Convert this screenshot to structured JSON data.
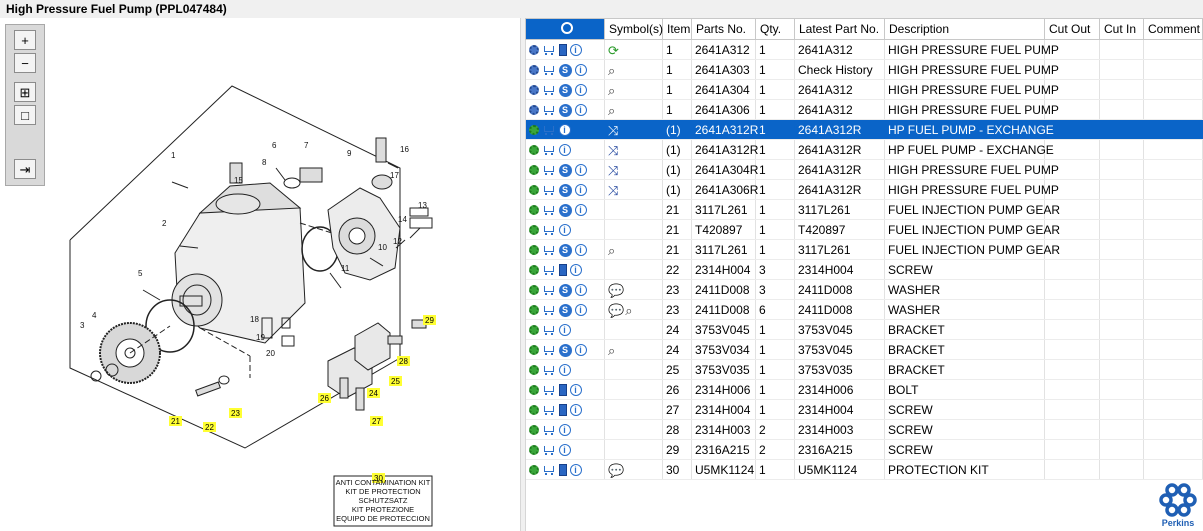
{
  "window": {
    "title": "High Pressure Fuel Pump (PPL047484)"
  },
  "toolbar": {
    "buttons": [
      {
        "name": "zoom-in-icon",
        "glyph": "+"
      },
      {
        "name": "zoom-out-icon",
        "glyph": "−"
      },
      {
        "name": "fit-all-icon",
        "glyph": "⊞"
      },
      {
        "name": "actual-size-icon",
        "glyph": "□"
      },
      {
        "name": "export-icon",
        "glyph": "⇥"
      }
    ]
  },
  "diagram": {
    "callouts": [
      "1",
      "2",
      "3",
      "4",
      "5",
      "6",
      "7",
      "8",
      "9",
      "10",
      "11",
      "12",
      "13",
      "14",
      "15",
      "16",
      "17",
      "18",
      "19",
      "20"
    ],
    "highlighted_callouts": [
      "21",
      "22",
      "23",
      "24",
      "25",
      "26",
      "27",
      "28",
      "29",
      "30"
    ],
    "kit_labels": [
      "ANTI CONTAMINATION KIT",
      "KIT DE PROTECTION",
      "SCHUTZSATZ",
      "KIT PROTEZIONE",
      "EQUIPO DE PROTECCION"
    ]
  },
  "table": {
    "columns": [
      "",
      "Symbol(s)",
      "Item",
      "Parts No.",
      "Qty.",
      "Latest Part No.",
      "Description",
      "Cut Out",
      "Cut In",
      "Comment"
    ],
    "rows": [
      {
        "icons": [
          "gear-blue",
          "cart",
          "book",
          "info"
        ],
        "symbols": [
          "refresh"
        ],
        "item": "1",
        "part": "2641A312",
        "qty": "1",
        "latest": "2641A312",
        "desc": "HIGH PRESSURE FUEL PUMP",
        "sel": false
      },
      {
        "icons": [
          "gear-blue",
          "cart",
          "s",
          "info"
        ],
        "symbols": [
          "magnifier"
        ],
        "item": "1",
        "part": "2641A303",
        "qty": "1",
        "latest": "Check History",
        "desc": "HIGH PRESSURE FUEL PUMP",
        "sel": false
      },
      {
        "icons": [
          "gear-blue",
          "cart",
          "s",
          "info"
        ],
        "symbols": [
          "magnifier"
        ],
        "item": "1",
        "part": "2641A304",
        "qty": "1",
        "latest": "2641A312",
        "desc": "HIGH PRESSURE FUEL PUMP",
        "sel": false
      },
      {
        "icons": [
          "gear-blue",
          "cart",
          "s",
          "info"
        ],
        "symbols": [
          "magnifier"
        ],
        "item": "1",
        "part": "2641A306",
        "qty": "1",
        "latest": "2641A312",
        "desc": "HIGH PRESSURE FUEL PUMP",
        "sel": false
      },
      {
        "icons": [
          "gear",
          "cart",
          "info"
        ],
        "symbols": [
          "exchange"
        ],
        "item": "(1)",
        "part": "2641A312R",
        "qty": "1",
        "latest": "2641A312R",
        "desc": "HP FUEL PUMP - EXCHANGE",
        "sel": true
      },
      {
        "icons": [
          "gear",
          "cart",
          "info"
        ],
        "symbols": [
          "exchange"
        ],
        "item": "(1)",
        "part": "2641A312R",
        "qty": "1",
        "latest": "2641A312R",
        "desc": "HP FUEL PUMP - EXCHANGE",
        "sel": false
      },
      {
        "icons": [
          "gear",
          "cart",
          "s",
          "info"
        ],
        "symbols": [
          "exchange"
        ],
        "item": "(1)",
        "part": "2641A304R",
        "qty": "1",
        "latest": "2641A312R",
        "desc": "HIGH PRESSURE FUEL PUMP",
        "sel": false
      },
      {
        "icons": [
          "gear",
          "cart",
          "s",
          "info"
        ],
        "symbols": [
          "exchange"
        ],
        "item": "(1)",
        "part": "2641A306R",
        "qty": "1",
        "latest": "2641A312R",
        "desc": "HIGH PRESSURE FUEL PUMP",
        "sel": false
      },
      {
        "icons": [
          "gear",
          "cart",
          "s",
          "info"
        ],
        "symbols": [],
        "item": "21",
        "part": "3117L261",
        "qty": "1",
        "latest": "3117L261",
        "desc": "FUEL INJECTION PUMP GEAR",
        "sel": false
      },
      {
        "icons": [
          "gear",
          "cart",
          "info"
        ],
        "symbols": [],
        "item": "21",
        "part": "T420897",
        "qty": "1",
        "latest": "T420897",
        "desc": "FUEL INJECTION PUMP GEAR",
        "sel": false
      },
      {
        "icons": [
          "gear",
          "cart",
          "s",
          "info"
        ],
        "symbols": [
          "magnifier"
        ],
        "item": "21",
        "part": "3117L261",
        "qty": "1",
        "latest": "3117L261",
        "desc": "FUEL INJECTION PUMP GEAR",
        "sel": false
      },
      {
        "icons": [
          "gear",
          "cart",
          "book",
          "info"
        ],
        "symbols": [],
        "item": "22",
        "part": "2314H004",
        "qty": "3",
        "latest": "2314H004",
        "desc": "SCREW",
        "sel": false
      },
      {
        "icons": [
          "gear",
          "cart",
          "s",
          "info"
        ],
        "symbols": [
          "comment"
        ],
        "item": "23",
        "part": "2411D008",
        "qty": "3",
        "latest": "2411D008",
        "desc": "WASHER",
        "sel": false
      },
      {
        "icons": [
          "gear",
          "cart",
          "s",
          "info"
        ],
        "symbols": [
          "comment",
          "magnifier"
        ],
        "item": "23",
        "part": "2411D008",
        "qty": "6",
        "latest": "2411D008",
        "desc": "WASHER",
        "sel": false
      },
      {
        "icons": [
          "gear",
          "cart",
          "info"
        ],
        "symbols": [],
        "item": "24",
        "part": "3753V045",
        "qty": "1",
        "latest": "3753V045",
        "desc": "BRACKET",
        "sel": false
      },
      {
        "icons": [
          "gear",
          "cart",
          "s",
          "info"
        ],
        "symbols": [
          "magnifier"
        ],
        "item": "24",
        "part": "3753V034",
        "qty": "1",
        "latest": "3753V045",
        "desc": "BRACKET",
        "sel": false
      },
      {
        "icons": [
          "gear",
          "cart",
          "info"
        ],
        "symbols": [],
        "item": "25",
        "part": "3753V035",
        "qty": "1",
        "latest": "3753V035",
        "desc": "BRACKET",
        "sel": false
      },
      {
        "icons": [
          "gear",
          "cart",
          "book",
          "info"
        ],
        "symbols": [],
        "item": "26",
        "part": "2314H006",
        "qty": "1",
        "latest": "2314H006",
        "desc": "BOLT",
        "sel": false
      },
      {
        "icons": [
          "gear",
          "cart",
          "book",
          "info"
        ],
        "symbols": [],
        "item": "27",
        "part": "2314H004",
        "qty": "1",
        "latest": "2314H004",
        "desc": "SCREW",
        "sel": false
      },
      {
        "icons": [
          "gear",
          "cart",
          "info"
        ],
        "symbols": [],
        "item": "28",
        "part": "2314H003",
        "qty": "2",
        "latest": "2314H003",
        "desc": "SCREW",
        "sel": false
      },
      {
        "icons": [
          "gear",
          "cart",
          "info"
        ],
        "symbols": [],
        "item": "29",
        "part": "2316A215",
        "qty": "2",
        "latest": "2316A215",
        "desc": "SCREW",
        "sel": false
      },
      {
        "icons": [
          "gear",
          "cart",
          "book",
          "info"
        ],
        "symbols": [
          "comment"
        ],
        "item": "30",
        "part": "U5MK1124",
        "qty": "1",
        "latest": "U5MK1124",
        "desc": "PROTECTION KIT",
        "sel": false
      }
    ]
  },
  "brand": {
    "name": "Perkins",
    "color": "#1f5fb4"
  }
}
